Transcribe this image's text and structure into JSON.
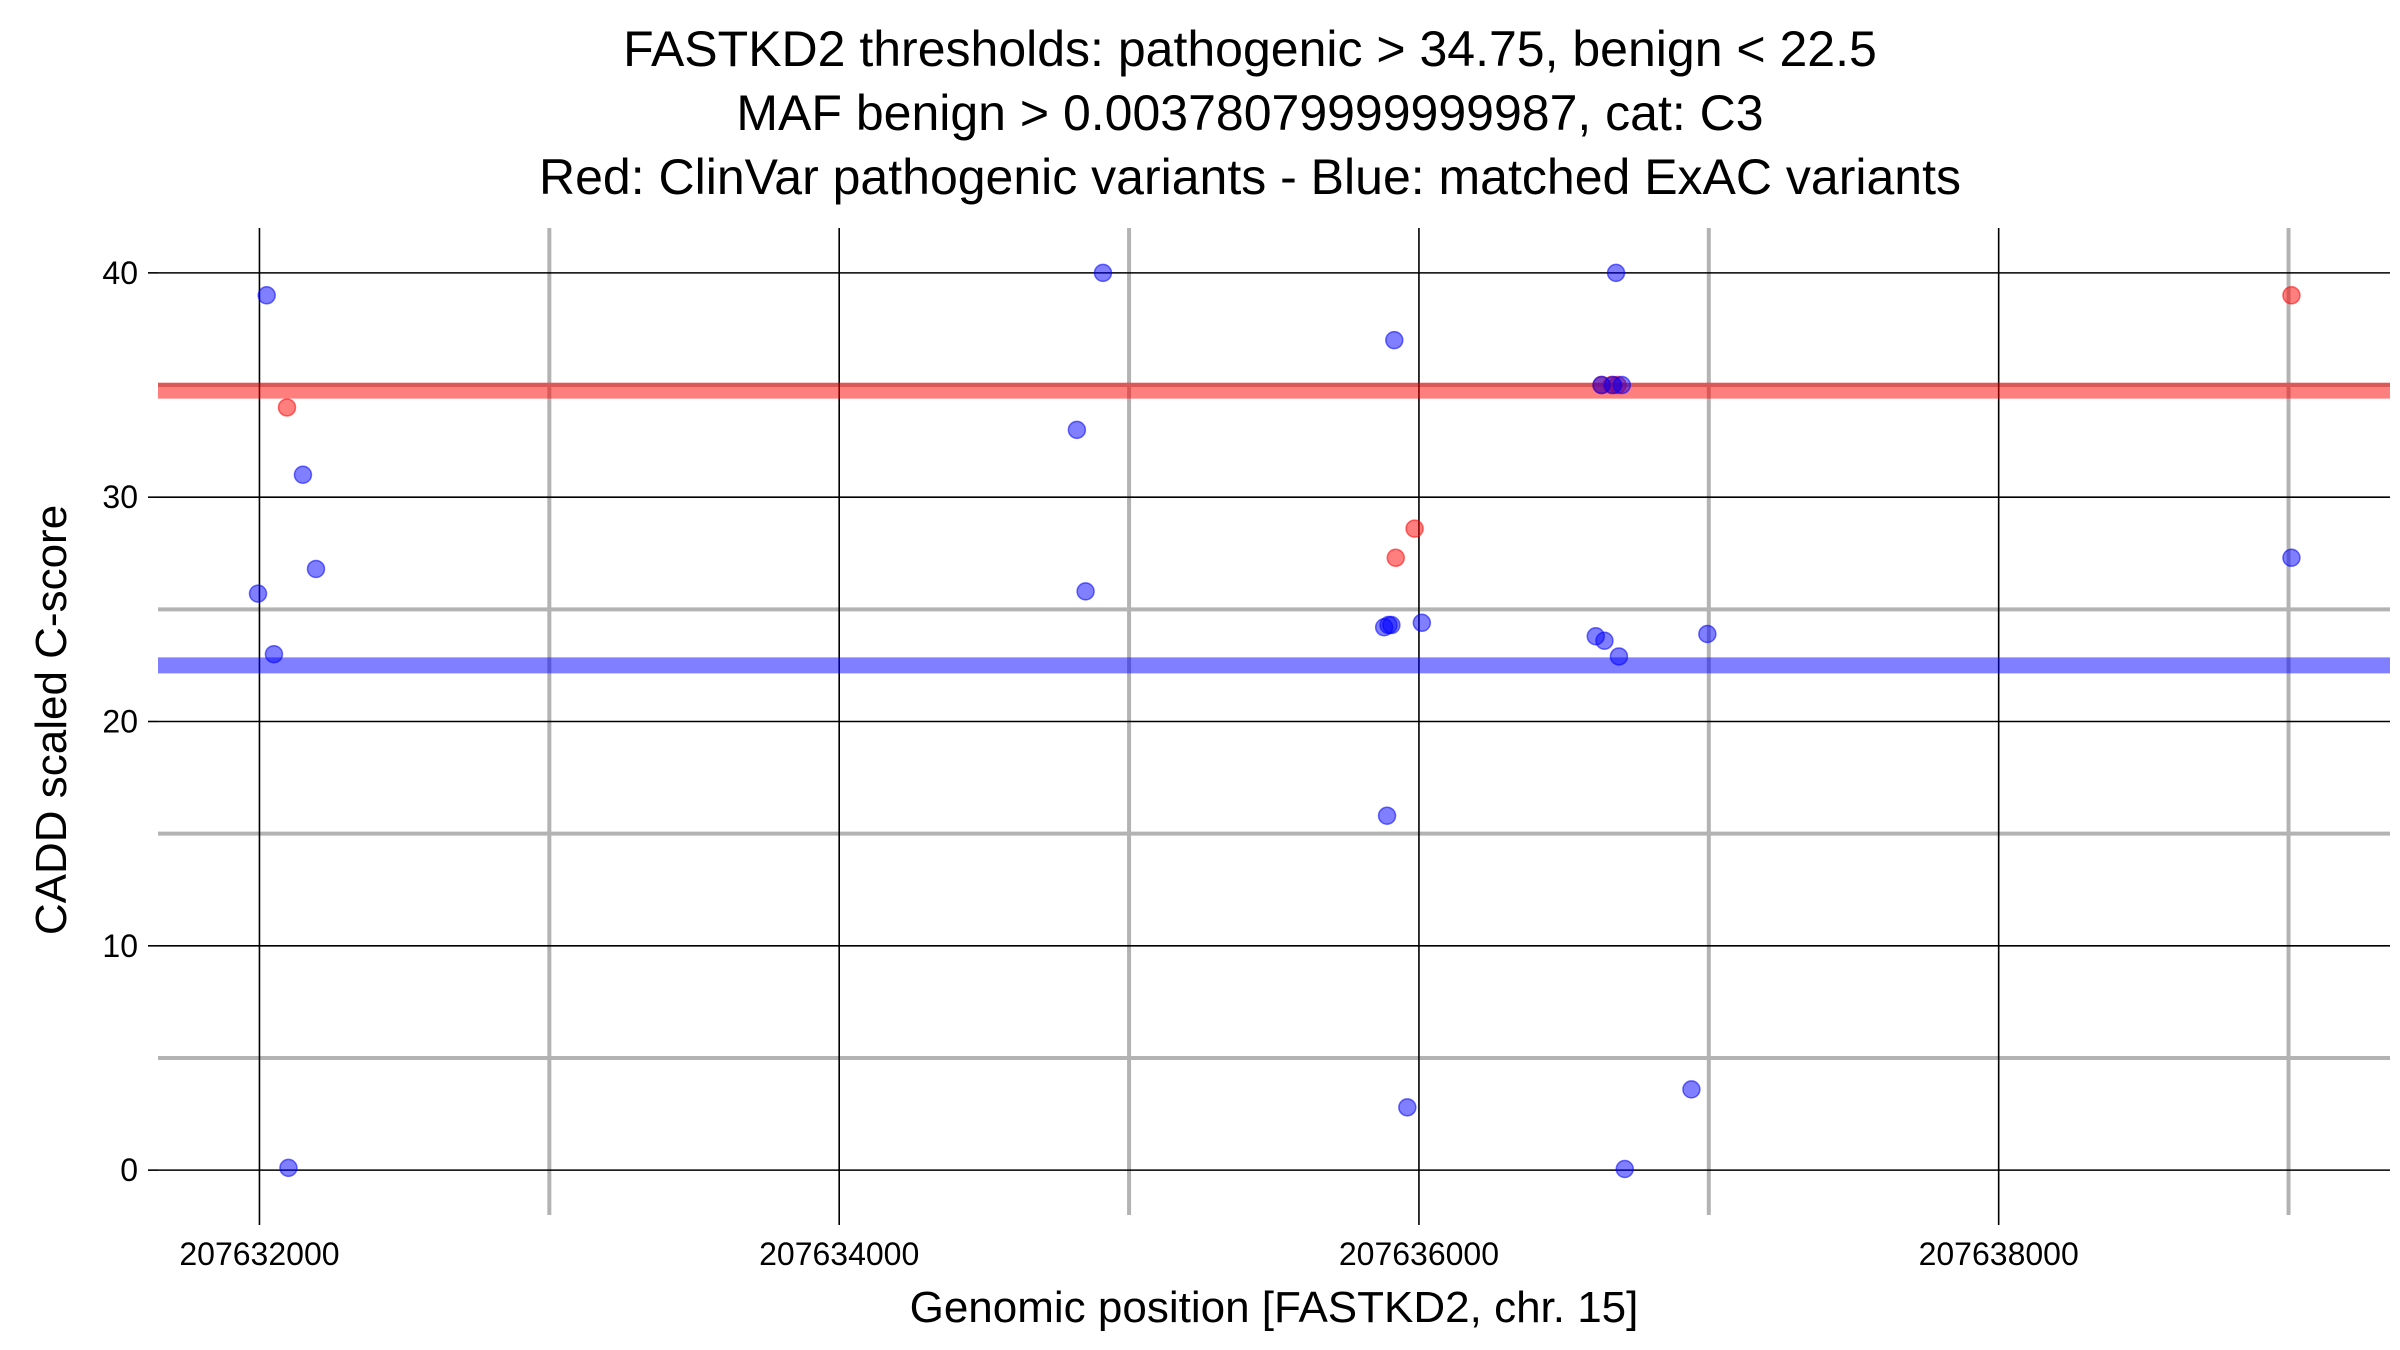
{
  "chart_data": {
    "type": "scatter",
    "title_lines": [
      "FASTKD2 thresholds: pathogenic > 34.75, benign < 22.5",
      "MAF benign > 0.00378079999999987, cat: C3",
      "Red: ClinVar pathogenic variants - Blue: matched ExAC variants"
    ],
    "xlabel": "Genomic position [FASTKD2, chr. 15]",
    "ylabel": "CADD scaled C-score",
    "xlim": [
      207631650,
      207639350
    ],
    "ylim": [
      -2,
      42
    ],
    "x_major_ticks": [
      207632000,
      207634000,
      207636000,
      207638000
    ],
    "x_tick_labels": [
      "207632000",
      "207634000",
      "207636000",
      "207638000"
    ],
    "x_minor_ticks": [
      207633000,
      207635000,
      207637000,
      207639000
    ],
    "y_major_ticks": [
      0,
      10,
      20,
      30,
      40
    ],
    "y_tick_labels": [
      "0",
      "10",
      "20",
      "30",
      "40"
    ],
    "y_minor_ticks": [
      5,
      15,
      25,
      35
    ],
    "colors": {
      "pathogenic": "#ff0000",
      "benign": "#0000ff",
      "major_grid": "#000000",
      "minor_grid": "#b3b3b3"
    },
    "thresholds": [
      {
        "name": "pathogenic",
        "value": 34.75,
        "color": "#ff0000"
      },
      {
        "name": "benign",
        "value": 22.5,
        "color": "#0000ff"
      }
    ],
    "series": [
      {
        "name": "ClinVar pathogenic variants",
        "color": "#ff0000",
        "points": [
          {
            "x": 207632095,
            "y": 34.0
          },
          {
            "x": 207635920,
            "y": 27.3
          },
          {
            "x": 207635985,
            "y": 28.6
          },
          {
            "x": 207636630,
            "y": 35.0
          },
          {
            "x": 207636665,
            "y": 35.0
          },
          {
            "x": 207636685,
            "y": 35.0
          },
          {
            "x": 207639010,
            "y": 39.0
          }
        ]
      },
      {
        "name": "matched ExAC variants",
        "color": "#0000ff",
        "points": [
          {
            "x": 207631995,
            "y": 25.7
          },
          {
            "x": 207632025,
            "y": 39.0
          },
          {
            "x": 207632050,
            "y": 23.0
          },
          {
            "x": 207632100,
            "y": 0.1
          },
          {
            "x": 207632150,
            "y": 31.0
          },
          {
            "x": 207632195,
            "y": 26.8
          },
          {
            "x": 207634820,
            "y": 33.0
          },
          {
            "x": 207634850,
            "y": 25.8
          },
          {
            "x": 207634910,
            "y": 40.0
          },
          {
            "x": 207635880,
            "y": 24.2
          },
          {
            "x": 207635895,
            "y": 24.3
          },
          {
            "x": 207635905,
            "y": 24.3
          },
          {
            "x": 207635890,
            "y": 15.8
          },
          {
            "x": 207635915,
            "y": 37.0
          },
          {
            "x": 207635960,
            "y": 2.8
          },
          {
            "x": 207636010,
            "y": 24.4
          },
          {
            "x": 207636610,
            "y": 23.8
          },
          {
            "x": 207636640,
            "y": 23.6
          },
          {
            "x": 207636630,
            "y": 35.0
          },
          {
            "x": 207636670,
            "y": 35.0
          },
          {
            "x": 207636680,
            "y": 40.0
          },
          {
            "x": 207636690,
            "y": 22.9
          },
          {
            "x": 207636700,
            "y": 35.0
          },
          {
            "x": 207636710,
            "y": 0.05
          },
          {
            "x": 207636940,
            "y": 3.6
          },
          {
            "x": 207636995,
            "y": 23.9
          },
          {
            "x": 207639010,
            "y": 27.3
          }
        ]
      }
    ]
  }
}
